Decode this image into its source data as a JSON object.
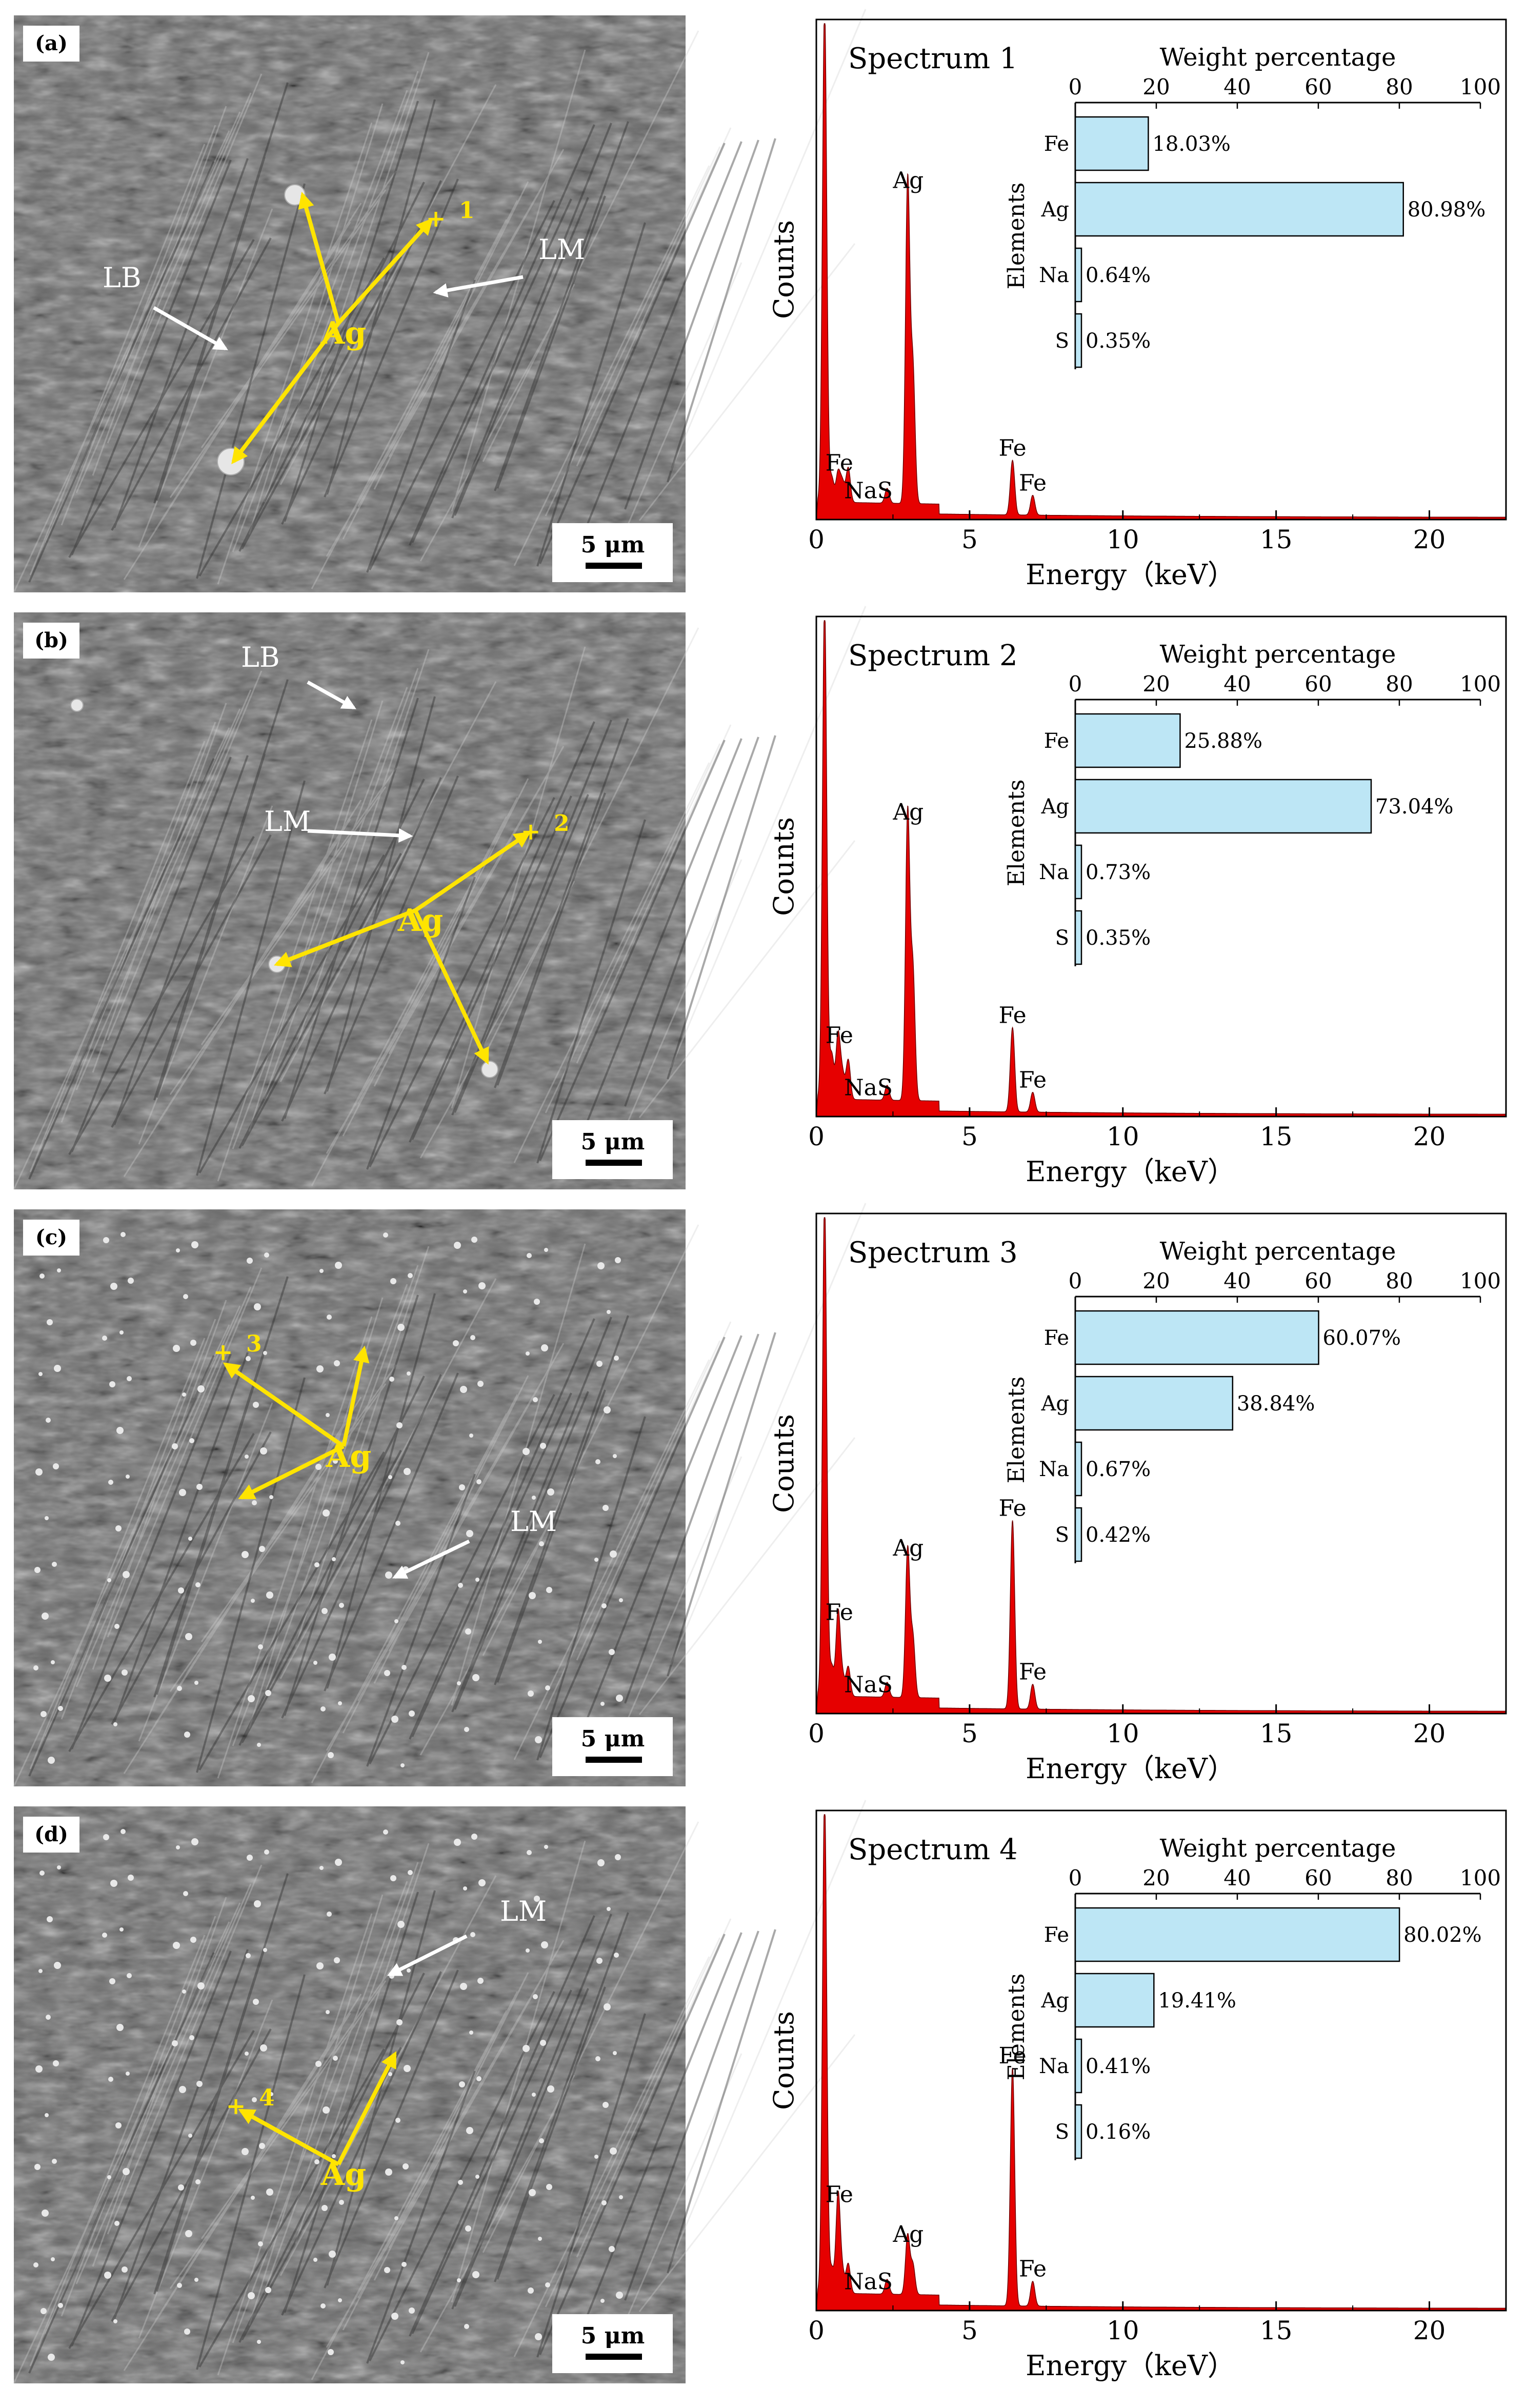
{
  "panels": [
    {
      "tag": "(a)",
      "scale": "5 μm",
      "labels": [
        "Ag",
        "LB",
        "LM"
      ],
      "point": "1",
      "chart_data": {
        "type": "line",
        "title": "Spectrum 1",
        "xlabel": "Energy（keV）",
        "ylabel": "Counts",
        "xlim": [
          0,
          22.5
        ],
        "xticks": [
          0,
          5,
          10,
          15,
          20
        ],
        "x": [
          0.27,
          0.5,
          0.71,
          0.85,
          1.04,
          2.31,
          2.98,
          3.15,
          6.4,
          7.06
        ],
        "series": [
          {
            "values": [
              1.0,
              0.05,
              0.06,
              0.04,
              0.07,
              0.03,
              0.65,
              0.27,
              0.11,
              0.04
            ]
          }
        ],
        "peak_labels": [
          {
            "text": "Ag",
            "x": 3.0,
            "y": 0.65
          },
          {
            "text": "Fe",
            "x": 0.75,
            "y": 0.08
          },
          {
            "text": "NaS",
            "x": 1.7,
            "y": 0.04
          },
          {
            "text": "Fe",
            "x": 6.4,
            "y": 0.11
          },
          {
            "text": "Fe",
            "x": 7.06,
            "y": 0.04
          }
        ],
        "inset": {
          "type": "bar",
          "title": "Weight percentage",
          "ylabel": "Elements",
          "xlim": [
            0,
            100
          ],
          "xticks": [
            0,
            20,
            40,
            60,
            80,
            100
          ],
          "categories": [
            "Fe",
            "Ag",
            "Na",
            "S"
          ],
          "values": [
            18.03,
            80.98,
            0.64,
            0.35
          ],
          "value_labels": [
            "18.03%",
            "80.98%",
            "0.64%",
            "0.35%"
          ],
          "color": "#bde6f5"
        }
      }
    },
    {
      "tag": "(b)",
      "scale": "5 μm",
      "labels": [
        "Ag",
        "LB",
        "LM"
      ],
      "point": "2",
      "chart_data": {
        "type": "line",
        "title": "Spectrum 2",
        "xlabel": "Energy（keV）",
        "ylabel": "Counts",
        "xlim": [
          0,
          22.5
        ],
        "xticks": [
          0,
          5,
          10,
          15,
          20
        ],
        "x": [
          0.27,
          0.5,
          0.71,
          0.85,
          1.04,
          2.31,
          2.98,
          3.15,
          6.4,
          7.06
        ],
        "series": [
          {
            "values": [
              1.0,
              0.09,
              0.13,
              0.05,
              0.08,
              0.03,
              0.58,
              0.26,
              0.17,
              0.04
            ]
          }
        ],
        "peak_labels": [
          {
            "text": "Ag",
            "x": 3.0,
            "y": 0.58
          },
          {
            "text": "Fe",
            "x": 0.75,
            "y": 0.13
          },
          {
            "text": "NaS",
            "x": 1.7,
            "y": 0.04
          },
          {
            "text": "Fe",
            "x": 6.4,
            "y": 0.17
          },
          {
            "text": "Fe",
            "x": 7.06,
            "y": 0.04
          }
        ],
        "inset": {
          "type": "bar",
          "title": "Weight percentage",
          "ylabel": "Elements",
          "xlim": [
            0,
            100
          ],
          "xticks": [
            0,
            20,
            40,
            60,
            80,
            100
          ],
          "categories": [
            "Fe",
            "Ag",
            "Na",
            "S"
          ],
          "values": [
            25.88,
            73.04,
            0.73,
            0.35
          ],
          "value_labels": [
            "25.88%",
            "73.04%",
            "0.73%",
            "0.35%"
          ],
          "color": "#bde6f5"
        }
      }
    },
    {
      "tag": "(c)",
      "scale": "5 μm",
      "labels": [
        "Ag",
        "LM"
      ],
      "point": "3",
      "chart_data": {
        "type": "line",
        "title": "Spectrum 3",
        "xlabel": "Energy（keV）",
        "ylabel": "Counts",
        "xlim": [
          0,
          22.5
        ],
        "xticks": [
          0,
          5,
          10,
          15,
          20
        ],
        "x": [
          0.27,
          0.5,
          0.71,
          0.85,
          1.04,
          2.31,
          2.98,
          3.15,
          6.4,
          7.06
        ],
        "series": [
          {
            "values": [
              1.0,
              0.06,
              0.17,
              0.04,
              0.06,
              0.03,
              0.3,
              0.12,
              0.38,
              0.05
            ]
          }
        ],
        "peak_labels": [
          {
            "text": "Ag",
            "x": 3.0,
            "y": 0.3
          },
          {
            "text": "Fe",
            "x": 0.75,
            "y": 0.17
          },
          {
            "text": "NaS",
            "x": 1.7,
            "y": 0.04
          },
          {
            "text": "Fe",
            "x": 6.4,
            "y": 0.38
          },
          {
            "text": "Fe",
            "x": 7.06,
            "y": 0.05
          }
        ],
        "inset": {
          "type": "bar",
          "title": "Weight percentage",
          "ylabel": "Elements",
          "xlim": [
            0,
            100
          ],
          "xticks": [
            0,
            20,
            40,
            60,
            80,
            100
          ],
          "categories": [
            "Fe",
            "Ag",
            "Na",
            "S"
          ],
          "values": [
            60.07,
            38.84,
            0.67,
            0.42
          ],
          "value_labels": [
            "60.07%",
            "38.84%",
            "0.67%",
            "0.42%"
          ],
          "color": "#bde6f5"
        }
      }
    },
    {
      "tag": "(d)",
      "scale": "5 μm",
      "labels": [
        "Ag",
        "LM"
      ],
      "point": "4",
      "chart_data": {
        "type": "line",
        "title": "Spectrum 4",
        "xlabel": "Energy（keV）",
        "ylabel": "Counts",
        "xlim": [
          0,
          22.5
        ],
        "xticks": [
          0,
          5,
          10,
          15,
          20
        ],
        "x": [
          0.27,
          0.5,
          0.71,
          0.85,
          1.04,
          2.31,
          2.98,
          3.15,
          6.4,
          7.06
        ],
        "series": [
          {
            "values": [
              1.0,
              0.05,
              0.2,
              0.04,
              0.06,
              0.03,
              0.12,
              0.06,
              0.48,
              0.05
            ]
          }
        ],
        "peak_labels": [
          {
            "text": "Ag",
            "x": 3.0,
            "y": 0.12
          },
          {
            "text": "Fe",
            "x": 0.75,
            "y": 0.2
          },
          {
            "text": "NaS",
            "x": 1.7,
            "y": 0.04
          },
          {
            "text": "Fe",
            "x": 6.4,
            "y": 0.48
          },
          {
            "text": "Fe",
            "x": 7.06,
            "y": 0.05
          }
        ],
        "inset": {
          "type": "bar",
          "title": "Weight percentage",
          "ylabel": "Elements",
          "xlim": [
            0,
            100
          ],
          "xticks": [
            0,
            20,
            40,
            60,
            80,
            100
          ],
          "categories": [
            "Fe",
            "Ag",
            "Na",
            "S"
          ],
          "values": [
            80.02,
            19.41,
            0.41,
            0.16
          ],
          "value_labels": [
            "80.02%",
            "19.41%",
            "0.41%",
            "0.16%"
          ],
          "color": "#bde6f5"
        }
      }
    }
  ],
  "colors": {
    "spectrum": "#e60000",
    "sem_arrow": "#ffe400",
    "sem_label": "#ffffff"
  }
}
